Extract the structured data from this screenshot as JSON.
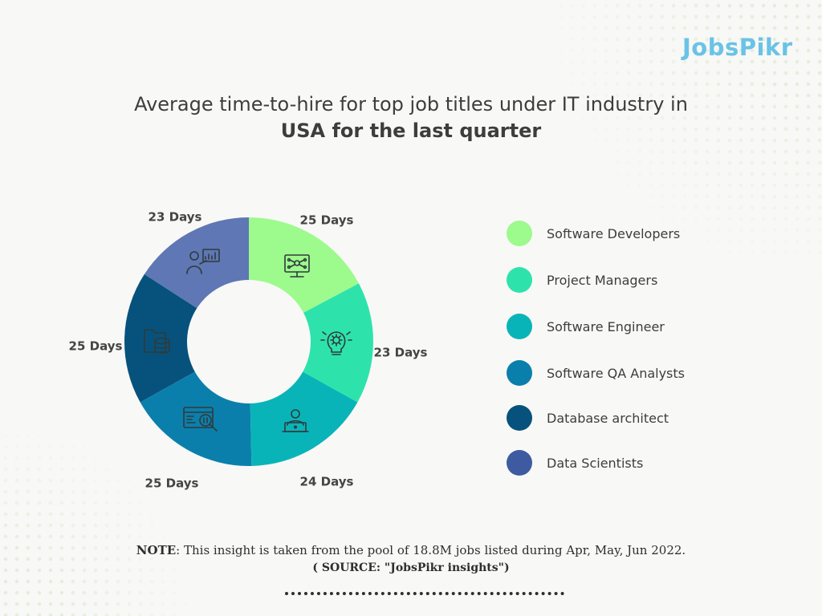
{
  "brand": {
    "logo_text": "JobsPikr",
    "logo_color": "#69c3e6"
  },
  "header": {
    "title_line1": "Average time-to-hire for top job titles under IT industry in",
    "title_line2": "USA for the last quarter"
  },
  "chart_data": {
    "type": "pie",
    "variant": "donut",
    "title": "Average time-to-hire for top job titles under IT industry in USA for the last quarter",
    "unit": "Days",
    "categories": [
      "Software Developers",
      "Project Managers",
      "Software Engineer",
      "Software QA Analysts",
      "Database architect",
      "Data Scientists"
    ],
    "values": [
      25,
      23,
      24,
      25,
      25,
      23
    ],
    "labels": [
      "25 Days",
      "23 Days",
      "24 Days",
      "25 Days",
      "25 Days",
      "23 Days"
    ],
    "colors": [
      "#9dfa8d",
      "#2ee3ab",
      "#09b4b8",
      "#0b7fab",
      "#07527d",
      "#5f77b4"
    ],
    "icons": [
      "monitor-network-icon",
      "lightbulb-gear-icon",
      "developer-laptop-icon",
      "code-search-icon",
      "folder-database-icon",
      "presenter-chart-icon"
    ],
    "legend_position": "right"
  },
  "legend": {
    "items": [
      {
        "label": "Software Developers",
        "color": "#9dfa8d"
      },
      {
        "label": "Project Managers",
        "color": "#2ee3ab"
      },
      {
        "label": "Software Engineer",
        "color": "#09b4b8"
      },
      {
        "label": "Software QA Analysts",
        "color": "#0b7fab"
      },
      {
        "label": "Database architect",
        "color": "#07527d"
      },
      {
        "label": "Data Scientists",
        "color": "#3e5ba2"
      }
    ]
  },
  "footer": {
    "note_label": "NOTE",
    "note_text": ": This insight is taken from the pool of 18.8M jobs listed during Apr, May, Jun 2022.",
    "source": "( SOURCE: \"JobsPikr insights\")"
  }
}
